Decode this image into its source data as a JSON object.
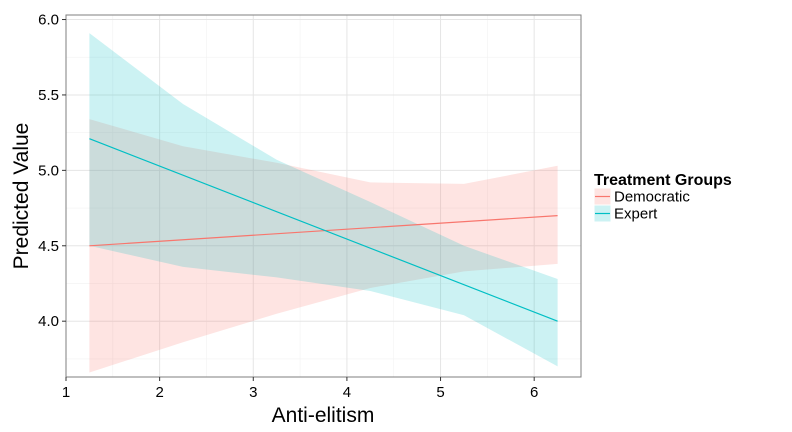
{
  "chart_data": {
    "type": "line",
    "xlabel": "Anti-elitism",
    "ylabel": "Predicted Value",
    "xlim": [
      1,
      6.5
    ],
    "ylim": [
      3.63,
      6.03
    ],
    "x_ticks": [
      1,
      2,
      3,
      4,
      5,
      6
    ],
    "y_ticks": [
      4.0,
      4.5,
      5.0,
      5.5,
      6.0
    ],
    "y_tick_labels": [
      "4.0",
      "4.5",
      "5.0",
      "5.5",
      "6.0"
    ],
    "grid": true,
    "legend": {
      "title": "Treatment Groups",
      "position": "right"
    },
    "series": [
      {
        "name": "Democratic",
        "color": "#F8766D",
        "fill_color": "#F8766D",
        "line": {
          "x": [
            1.25,
            6.25
          ],
          "y": [
            4.5,
            4.7
          ]
        },
        "band": {
          "x": [
            1.25,
            2.25,
            3.25,
            4.25,
            5.25,
            6.25
          ],
          "lower": [
            3.66,
            3.86,
            4.05,
            4.22,
            4.33,
            4.38
          ],
          "upper": [
            5.34,
            5.16,
            5.05,
            4.92,
            4.91,
            5.03
          ]
        }
      },
      {
        "name": "Expert",
        "color": "#00BFC4",
        "fill_color": "#00BFC4",
        "line": {
          "x": [
            1.25,
            6.25
          ],
          "y": [
            5.21,
            4.0
          ]
        },
        "band": {
          "x": [
            1.25,
            2.25,
            3.25,
            4.25,
            5.25,
            6.25
          ],
          "lower": [
            4.5,
            4.36,
            4.29,
            4.2,
            4.04,
            3.7
          ],
          "upper": [
            5.91,
            5.44,
            5.07,
            4.79,
            4.5,
            4.28
          ]
        }
      }
    ]
  }
}
